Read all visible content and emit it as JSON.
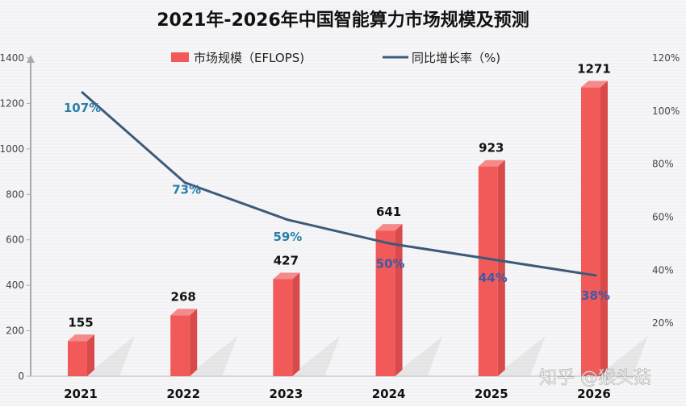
{
  "chart_data": {
    "type": "bar+line",
    "title": "2021年-2026年中国智能算力市场规模及预测",
    "categories": [
      "2021",
      "2022",
      "2023",
      "2024",
      "2025",
      "2026"
    ],
    "series": [
      {
        "name": "市场规模（EFLOPS)",
        "type": "bar",
        "axis": "left",
        "values": [
          155,
          268,
          427,
          641,
          923,
          1271
        ],
        "color": "#f25a5a"
      },
      {
        "name": "同比增长率（%)",
        "type": "line",
        "axis": "right",
        "values": [
          107,
          73,
          59,
          50,
          44,
          38
        ],
        "labels": [
          "107%",
          "73%",
          "59%",
          "50%",
          "44%",
          "38%"
        ],
        "color": "#3d5a7a"
      }
    ],
    "y_left": {
      "ticks": [
        0,
        200,
        400,
        600,
        800,
        1000,
        1200,
        1400
      ],
      "range": [
        0,
        1400
      ]
    },
    "y_right": {
      "ticks": [
        "20%",
        "40%",
        "60%",
        "80%",
        "100%",
        "120%"
      ],
      "range": [
        0,
        120
      ]
    },
    "legend": "top-center",
    "grid": false
  },
  "watermark": "知乎 @猴头菇"
}
